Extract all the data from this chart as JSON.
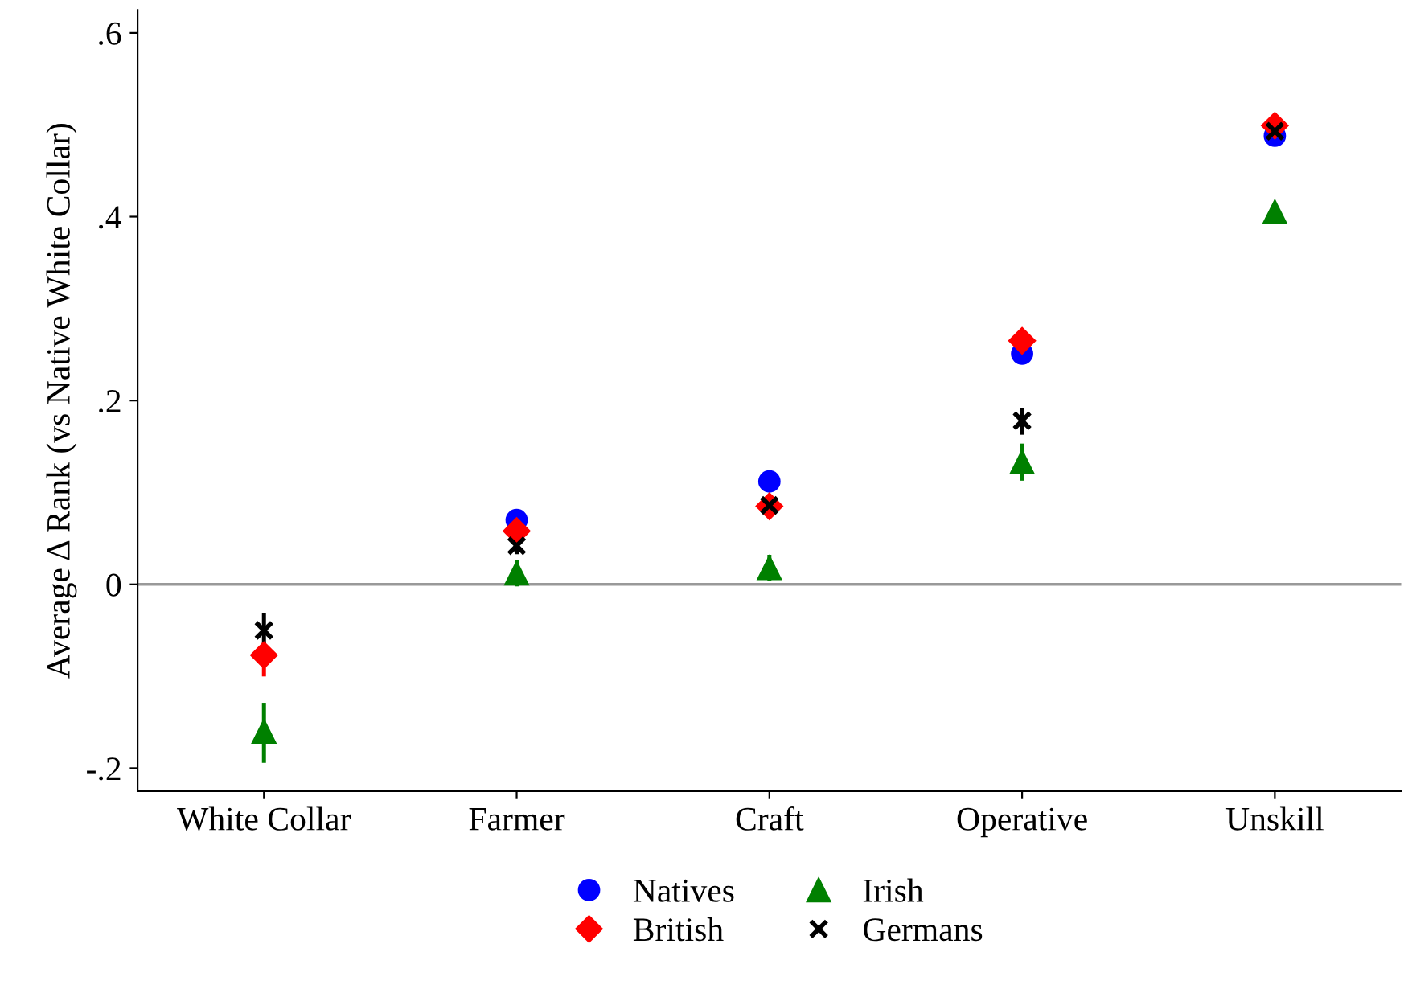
{
  "chart_data": {
    "type": "scatter",
    "ylabel": "Average Δ Rank (vs Native White Collar)",
    "categories": [
      "White Collar",
      "Farmer",
      "Craft",
      "Operative",
      "Unskill"
    ],
    "ylim": [
      -0.225,
      0.625
    ],
    "yticks": [
      {
        "value": -0.2,
        "label": "-.2"
      },
      0,
      {
        "value": 0.2,
        "label": ".2"
      },
      {
        "value": 0.4,
        "label": ".4"
      },
      {
        "value": 0.6,
        "label": ".6"
      }
    ],
    "ref_lines": [
      {
        "axis": "y",
        "value": 0,
        "color": "#999999"
      }
    ],
    "grid": false,
    "legend": "bottom",
    "series": [
      {
        "name": "Natives",
        "color": "#0000ff",
        "marker": "circle",
        "values": [
          null,
          0.07,
          0.112,
          0.251,
          0.488
        ]
      },
      {
        "name": "British",
        "color": "#ff0000",
        "marker": "diamond",
        "values": [
          -0.077,
          0.058,
          0.085,
          0.265,
          0.499
        ],
        "errors": [
          [
            -0.098,
            -0.065
          ],
          null,
          null,
          null,
          null
        ]
      },
      {
        "name": "Irish",
        "color": "#008000",
        "marker": "triangle",
        "values": [
          -0.16,
          0.012,
          0.018,
          0.133,
          0.405
        ],
        "errors": [
          [
            -0.192,
            -0.131
          ],
          [
            0.0,
            0.024
          ],
          [
            0.006,
            0.03
          ],
          [
            0.115,
            0.151
          ],
          null
        ]
      },
      {
        "name": "Germans",
        "color": "#000000",
        "marker": "cross",
        "values": [
          -0.05,
          0.042,
          0.086,
          0.178,
          0.493
        ],
        "errors": [
          [
            -0.072,
            -0.033
          ],
          [
            0.035,
            0.05
          ],
          null,
          [
            0.165,
            0.19
          ],
          null
        ]
      }
    ]
  }
}
